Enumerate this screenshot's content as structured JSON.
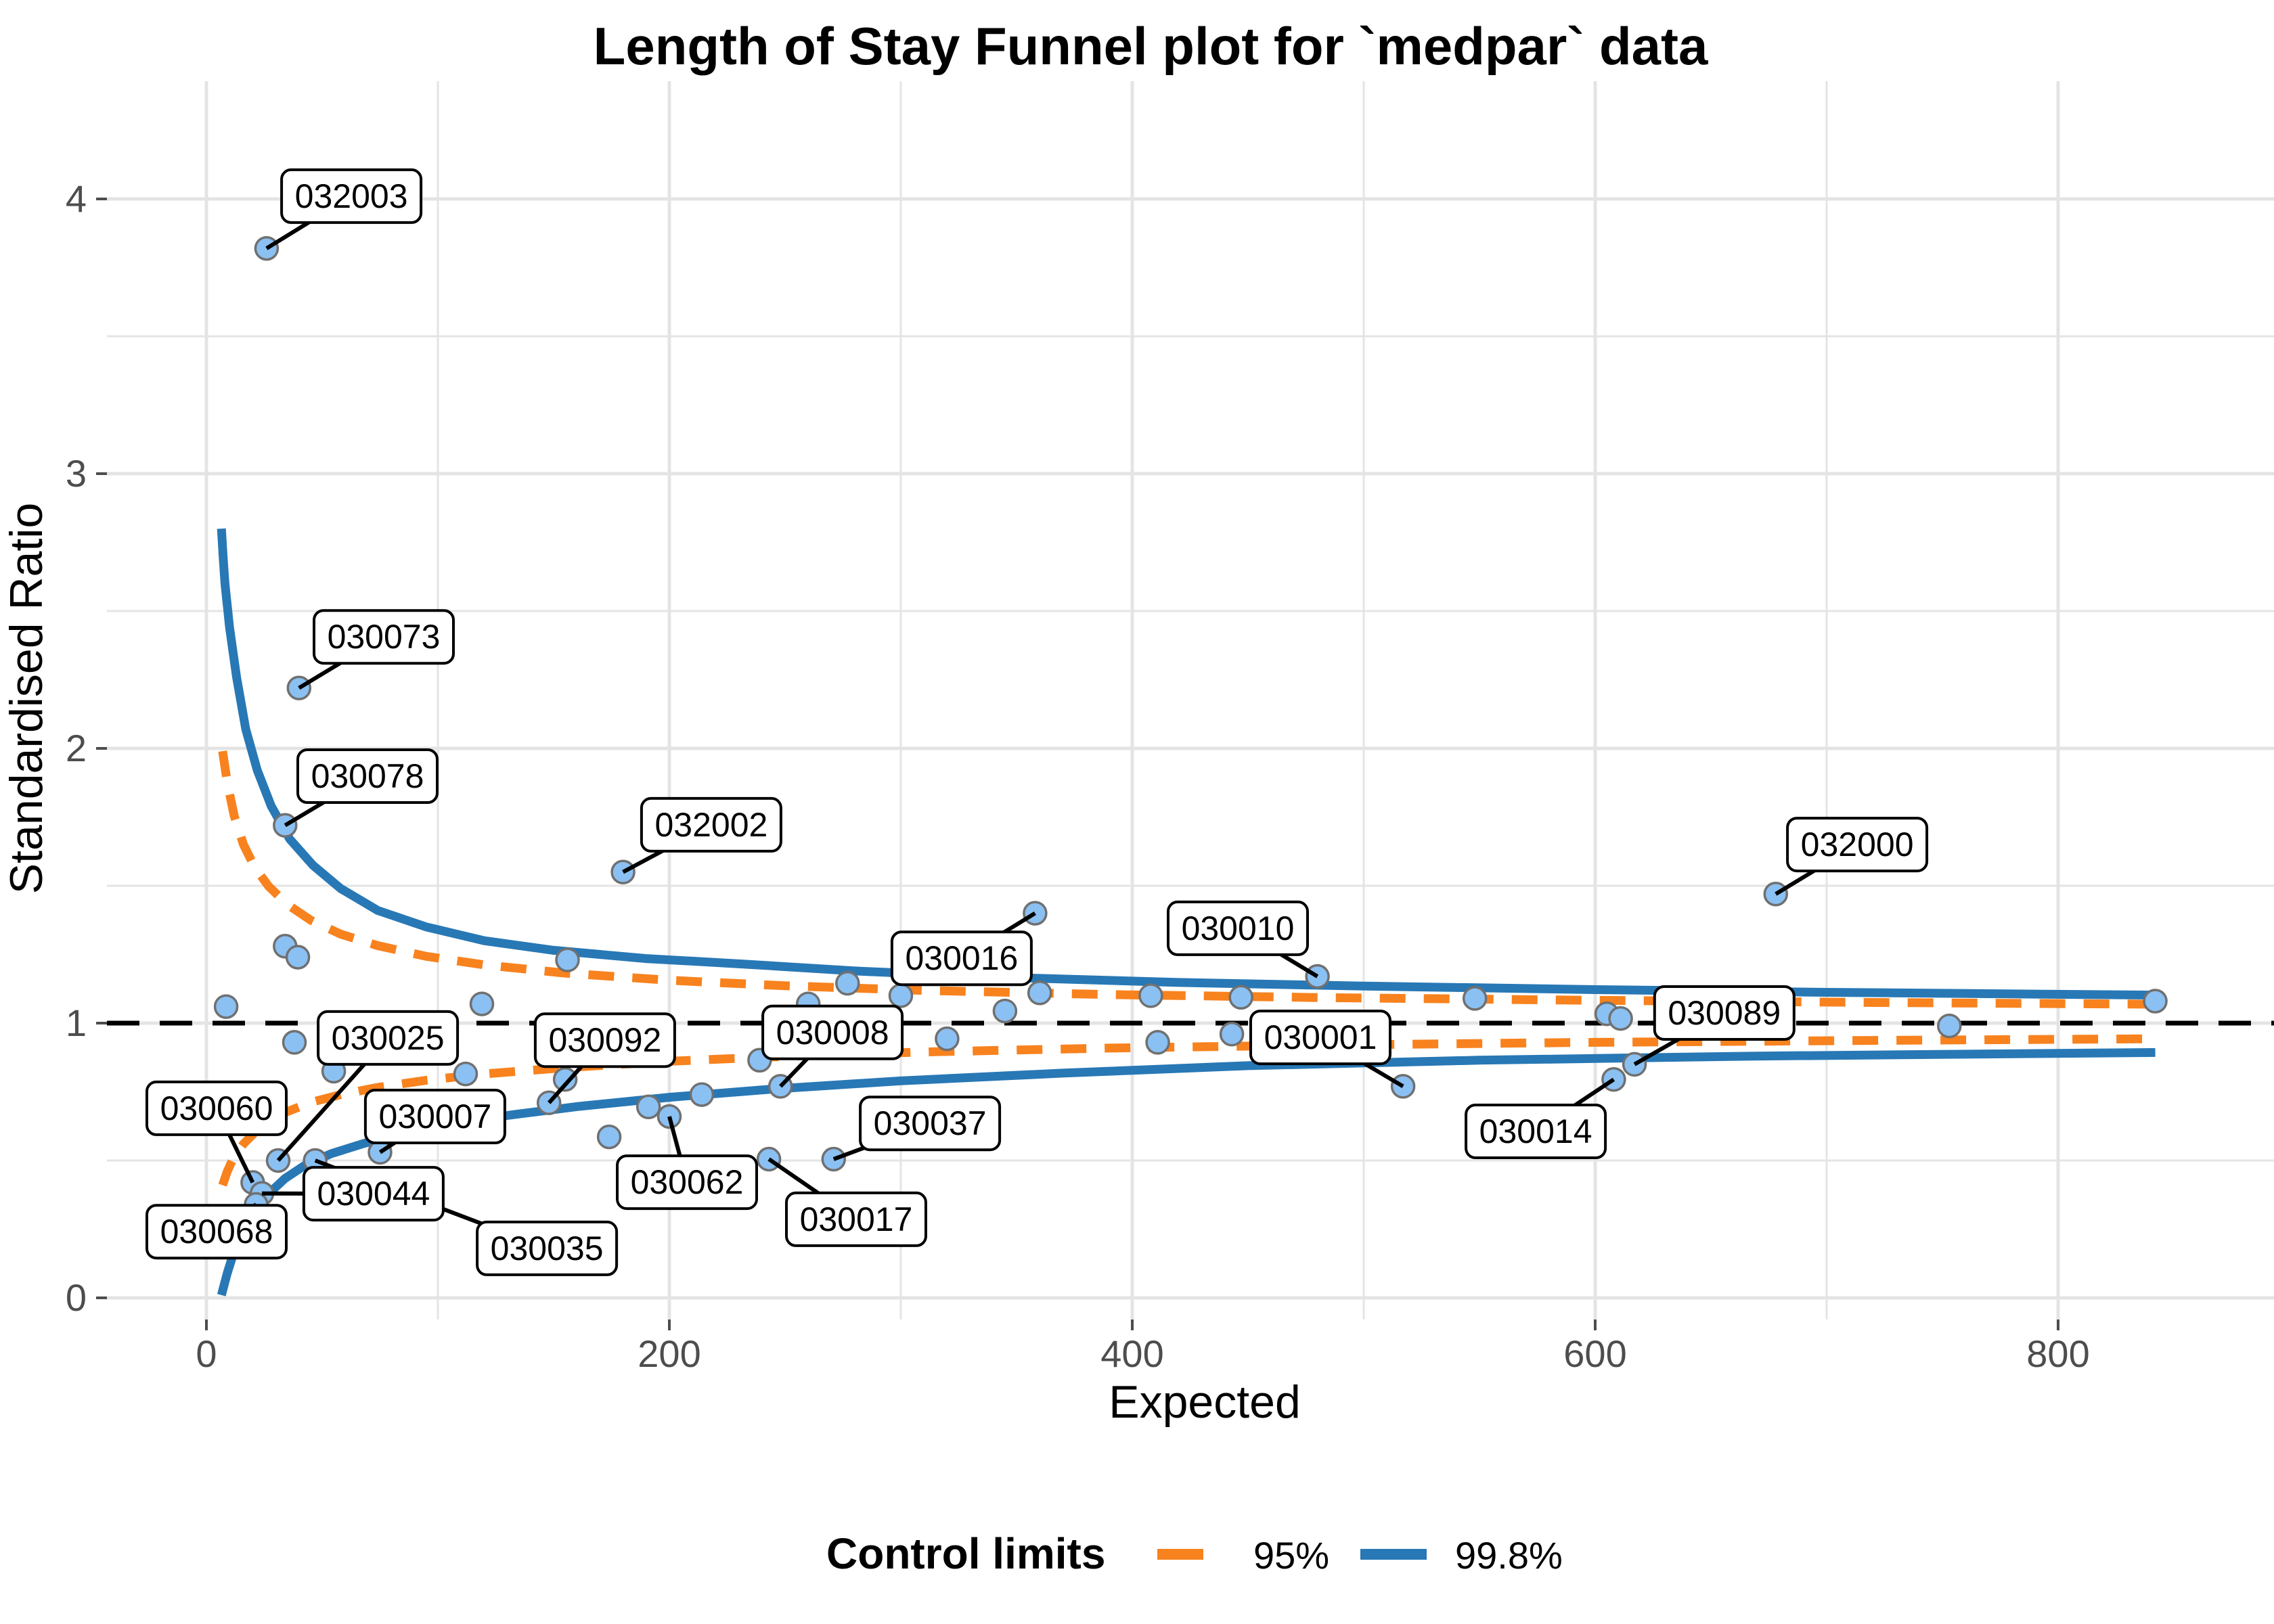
{
  "title": "Length of Stay Funnel plot for `medpar` data",
  "axes": {
    "x_title": "Expected",
    "y_title": "Standardised Ratio",
    "x_tick_labels": [
      "0",
      "200",
      "400",
      "600",
      "800"
    ],
    "y_tick_labels": [
      "0",
      "1",
      "2",
      "3",
      "4"
    ]
  },
  "legend": {
    "title": "Control limits",
    "items": [
      {
        "label": "95%",
        "color": "#F8821E",
        "style": "dashed"
      },
      {
        "label": "99.8%",
        "color": "#2878B5",
        "style": "solid"
      }
    ]
  },
  "colors": {
    "limit_95": "#F8821E",
    "limit_998": "#2878B5",
    "point_fill": "#8BC0F2",
    "point_stroke": "#707070",
    "grid": "#E4E4E4",
    "centerline": "#000000",
    "tick_text": "#4d4d4d"
  },
  "chart_data": {
    "type": "scatter",
    "title": "Length of Stay Funnel plot for `medpar` data",
    "xlabel": "Expected",
    "ylabel": "Standardised Ratio",
    "xlim": [
      -43,
      893
    ],
    "ylim": [
      -0.08,
      4.43
    ],
    "x_ticks": [
      0,
      200,
      400,
      600,
      800
    ],
    "y_ticks": [
      0,
      1,
      2,
      3,
      4
    ],
    "x_minor_ticks": [
      100,
      300,
      500,
      700
    ],
    "y_minor_ticks": [
      0.5,
      1.5,
      2.5,
      3.5
    ],
    "grid": "on",
    "legend_position": "bottom",
    "centerline_y": 1,
    "labeled_points": [
      {
        "label": "032003",
        "x": 26,
        "y": 3.82,
        "lx": 62.6,
        "ly": 4.01
      },
      {
        "label": "030073",
        "x": 40,
        "y": 2.22,
        "lx": 76.6,
        "ly": 2.406
      },
      {
        "label": "030078",
        "x": 34,
        "y": 1.72,
        "lx": 69.6,
        "ly": 1.899
      },
      {
        "label": "032002",
        "x": 180,
        "y": 1.55,
        "lx": 218.1,
        "ly": 1.722
      },
      {
        "label": "032000",
        "x": 678,
        "y": 1.47,
        "lx": 713.2,
        "ly": 1.65
      },
      {
        "label": "030016",
        "x": 358,
        "y": 1.4,
        "lx": 326.3,
        "ly": 1.236
      },
      {
        "label": "030010",
        "x": 480,
        "y": 1.17,
        "lx": 445.6,
        "ly": 1.345
      },
      {
        "label": "030089",
        "x": 617,
        "y": 0.85,
        "lx": 655.8,
        "ly": 1.037
      },
      {
        "label": "030008",
        "x": 248,
        "y": 0.77,
        "lx": 270.5,
        "ly": 0.966
      },
      {
        "label": "030092",
        "x": 148,
        "y": 0.71,
        "lx": 172.2,
        "ly": 0.938
      },
      {
        "label": "030025",
        "x": 31,
        "y": 0.5,
        "lx": 78.4,
        "ly": 0.946
      },
      {
        "label": "030001",
        "x": 517,
        "y": 0.77,
        "lx": 481.3,
        "ly": 0.948
      },
      {
        "label": "030060",
        "x": 20,
        "y": 0.42,
        "lx": 4.4,
        "ly": 0.69
      },
      {
        "label": "030007",
        "x": 75,
        "y": 0.53,
        "lx": 98.8,
        "ly": 0.66
      },
      {
        "label": "030037",
        "x": 271,
        "y": 0.505,
        "lx": 312.6,
        "ly": 0.635
      },
      {
        "label": "030014",
        "x": 608,
        "y": 0.795,
        "lx": 574.3,
        "ly": 0.606
      },
      {
        "label": "030062",
        "x": 200,
        "y": 0.66,
        "lx": 207.6,
        "ly": 0.421
      },
      {
        "label": "030044",
        "x": 24,
        "y": 0.38,
        "lx": 72.2,
        "ly": 0.379
      },
      {
        "label": "030017",
        "x": 243,
        "y": 0.505,
        "lx": 280.7,
        "ly": 0.286
      },
      {
        "label": "030068",
        "x": 21.5,
        "y": 0.34,
        "lx": 4.4,
        "ly": 0.241
      },
      {
        "label": "030035",
        "x": 47,
        "y": 0.5,
        "lx": 147.1,
        "ly": 0.18
      }
    ],
    "unlabeled_points": [
      [
        8.5,
        1.06
      ],
      [
        34,
        1.28
      ],
      [
        39.5,
        1.24
      ],
      [
        38,
        0.93
      ],
      [
        55,
        0.825
      ],
      [
        112,
        0.815
      ],
      [
        119,
        1.07
      ],
      [
        155,
        0.795
      ],
      [
        156,
        1.23
      ],
      [
        174,
        0.586
      ],
      [
        191,
        0.695
      ],
      [
        214,
        0.74
      ],
      [
        239,
        0.865
      ],
      [
        260,
        1.07
      ],
      [
        277,
        1.145
      ],
      [
        300,
        1.1
      ],
      [
        320,
        0.943
      ],
      [
        345,
        1.044
      ],
      [
        360,
        1.11
      ],
      [
        408,
        1.1
      ],
      [
        411,
        0.93
      ],
      [
        443,
        0.96
      ],
      [
        447,
        1.094
      ],
      [
        548,
        1.09
      ],
      [
        605,
        1.034
      ],
      [
        611,
        1.017
      ],
      [
        753,
        0.99
      ],
      [
        842,
        1.08
      ]
    ],
    "series": [
      {
        "name": "95% upper",
        "points": [
          [
            7,
            1.99
          ],
          [
            9,
            1.875
          ],
          [
            12,
            1.755
          ],
          [
            16,
            1.65
          ],
          [
            21,
            1.565
          ],
          [
            27,
            1.497
          ],
          [
            35,
            1.432
          ],
          [
            45,
            1.375
          ],
          [
            58,
            1.324
          ],
          [
            74,
            1.282
          ],
          [
            95,
            1.243
          ],
          [
            120,
            1.212
          ],
          [
            155,
            1.182
          ],
          [
            200,
            1.156
          ],
          [
            250,
            1.136
          ],
          [
            310,
            1.119
          ],
          [
            390,
            1.104
          ],
          [
            480,
            1.093
          ],
          [
            600,
            1.083
          ],
          [
            720,
            1.075
          ],
          [
            842,
            1.069
          ]
        ]
      },
      {
        "name": "95% lower",
        "points": [
          [
            7,
            0.41
          ],
          [
            9,
            0.46
          ],
          [
            12,
            0.515
          ],
          [
            16,
            0.56
          ],
          [
            21,
            0.603
          ],
          [
            27,
            0.642
          ],
          [
            35,
            0.678
          ],
          [
            45,
            0.711
          ],
          [
            58,
            0.74
          ],
          [
            74,
            0.766
          ],
          [
            95,
            0.792
          ],
          [
            120,
            0.815
          ],
          [
            155,
            0.838
          ],
          [
            200,
            0.861
          ],
          [
            250,
            0.879
          ],
          [
            310,
            0.895
          ],
          [
            390,
            0.909
          ],
          [
            480,
            0.92
          ],
          [
            600,
            0.93
          ],
          [
            720,
            0.937
          ],
          [
            842,
            0.943
          ]
        ]
      },
      {
        "name": "99.8% upper",
        "points": [
          [
            6.5,
            2.8
          ],
          [
            7.2,
            2.7
          ],
          [
            8,
            2.6
          ],
          [
            10,
            2.44
          ],
          [
            13,
            2.26
          ],
          [
            17,
            2.07
          ],
          [
            22,
            1.92
          ],
          [
            28,
            1.79
          ],
          [
            36,
            1.67
          ],
          [
            46,
            1.575
          ],
          [
            58,
            1.49
          ],
          [
            74,
            1.41
          ],
          [
            95,
            1.35
          ],
          [
            120,
            1.3
          ],
          [
            150,
            1.265
          ],
          [
            190,
            1.235
          ],
          [
            232,
            1.215
          ],
          [
            280,
            1.19
          ],
          [
            340,
            1.168
          ],
          [
            420,
            1.148
          ],
          [
            500,
            1.135
          ],
          [
            600,
            1.122
          ],
          [
            700,
            1.112
          ],
          [
            842,
            1.102
          ]
        ]
      },
      {
        "name": "99.8% lower",
        "points": [
          [
            6.5,
            0.01
          ],
          [
            9,
            0.09
          ],
          [
            12,
            0.17
          ],
          [
            16,
            0.24
          ],
          [
            21,
            0.31
          ],
          [
            27,
            0.38
          ],
          [
            34,
            0.435
          ],
          [
            43,
            0.485
          ],
          [
            54,
            0.525
          ],
          [
            68,
            0.562
          ],
          [
            85,
            0.598
          ],
          [
            105,
            0.632
          ],
          [
            130,
            0.664
          ],
          [
            160,
            0.696
          ],
          [
            200,
            0.73
          ],
          [
            245,
            0.76
          ],
          [
            300,
            0.79
          ],
          [
            370,
            0.818
          ],
          [
            450,
            0.845
          ],
          [
            550,
            0.865
          ],
          [
            670,
            0.88
          ],
          [
            842,
            0.893
          ]
        ]
      }
    ]
  }
}
